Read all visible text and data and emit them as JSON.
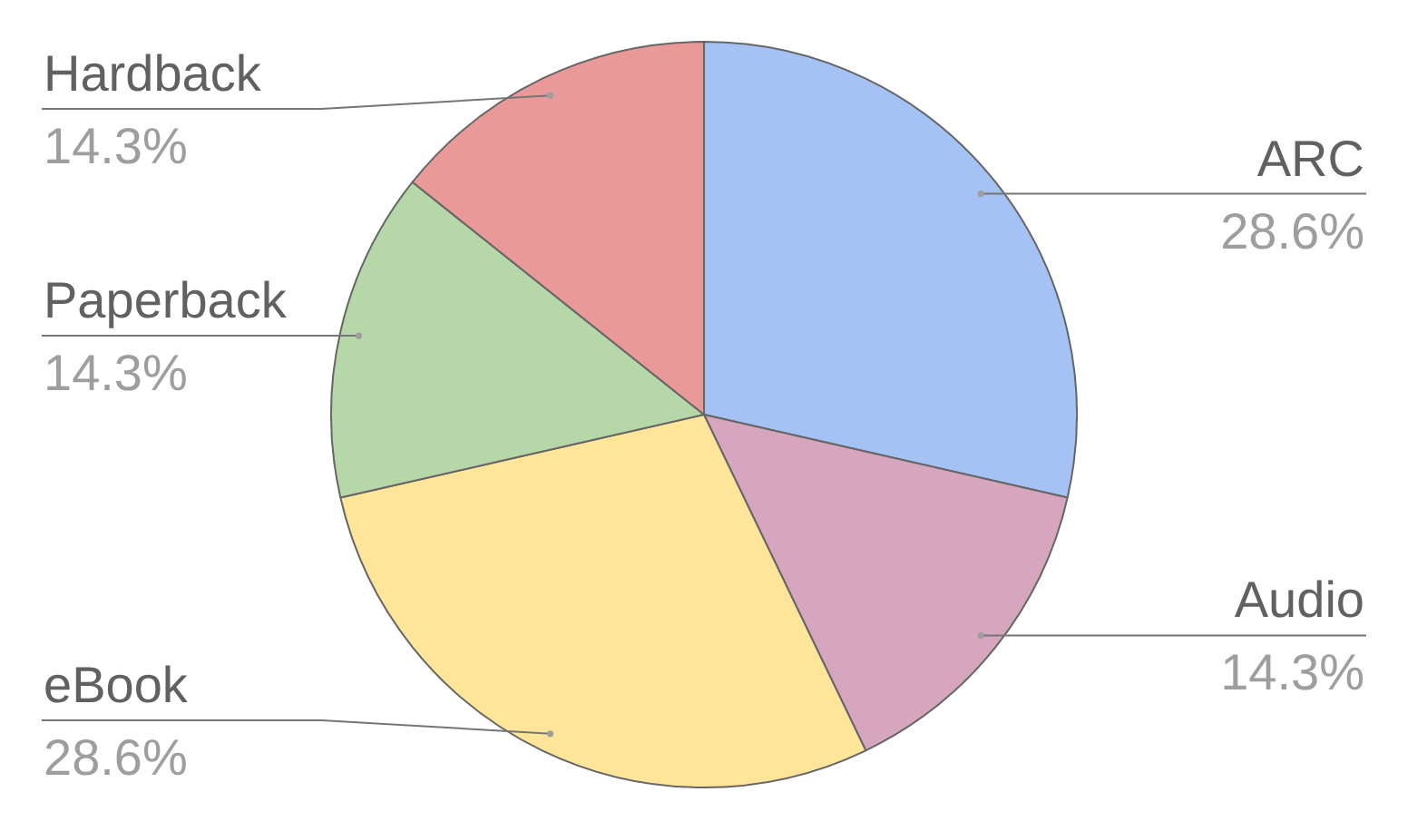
{
  "chart_data": {
    "type": "pie",
    "categories": [
      "ARC",
      "Audio",
      "eBook",
      "Paperback",
      "Hardback"
    ],
    "values": [
      28.6,
      14.3,
      28.6,
      14.3,
      14.3
    ],
    "value_labels": [
      "28.6%",
      "14.3%",
      "28.6%",
      "14.3%",
      "14.3%"
    ],
    "colors": [
      "#a4c2f4",
      "#d5a6bd",
      "#ffe599",
      "#b6d7a8",
      "#ea9999"
    ]
  }
}
